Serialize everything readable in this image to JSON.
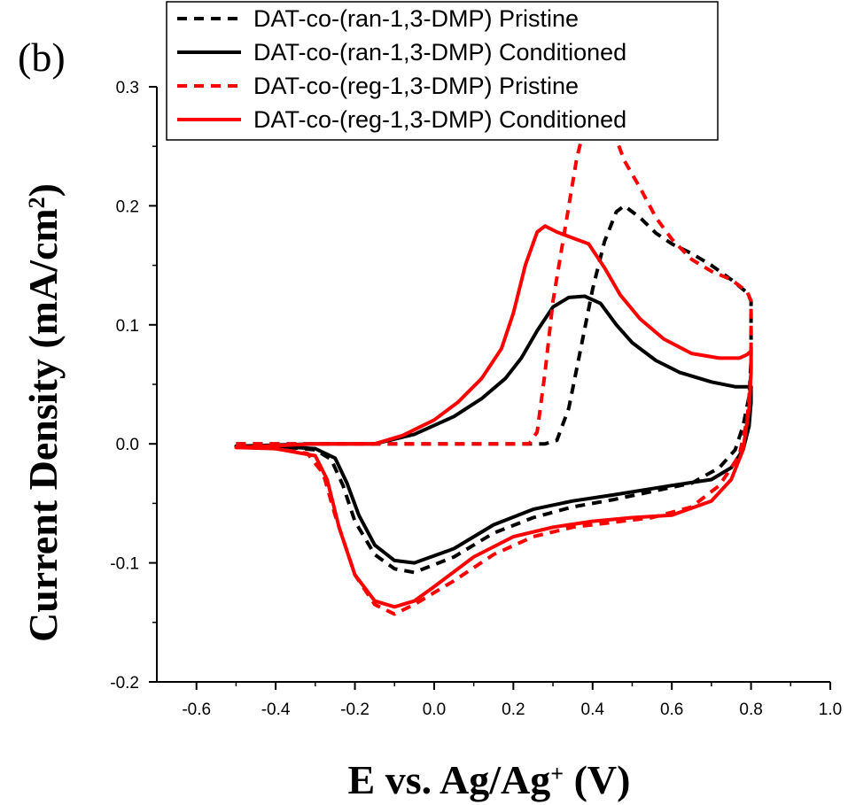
{
  "chart_data": {
    "type": "line",
    "panel_label": "(b)",
    "xlabel": {
      "main": "E vs. Ag/Ag",
      "sup": "+",
      "tail": " (V)"
    },
    "ylabel": {
      "main": "Current Density (mA/cm",
      "sup": "2",
      "tail": ")"
    },
    "xlim": [
      -0.7,
      1.0
    ],
    "ylim": [
      -0.2,
      0.3
    ],
    "xticks": [
      -0.6,
      -0.4,
      -0.2,
      0.0,
      0.2,
      0.4,
      0.6,
      0.8,
      1.0
    ],
    "xtick_labels": [
      "-0.6",
      "-0.4",
      "-0.2",
      "0.0",
      "0.2",
      "0.4",
      "0.6",
      "0.8",
      "1.0"
    ],
    "yticks": [
      -0.2,
      -0.1,
      0.0,
      0.1,
      0.2,
      0.3
    ],
    "ytick_labels": [
      "-0.2",
      "-0.1",
      "0.0",
      "0.1",
      "0.2",
      "0.3"
    ],
    "grid": false,
    "legend_position": "top",
    "series": [
      {
        "name": "DAT-co-(ran-1,3-DMP) Pristine",
        "color": "#000000",
        "dash": "dashed",
        "points": [
          [
            -0.5,
            0.0
          ],
          [
            -0.3,
            0.0
          ],
          [
            0.0,
            0.0
          ],
          [
            0.2,
            0.0
          ],
          [
            0.28,
            0.0
          ],
          [
            0.31,
            0.003
          ],
          [
            0.34,
            0.03
          ],
          [
            0.37,
            0.08
          ],
          [
            0.4,
            0.13
          ],
          [
            0.43,
            0.17
          ],
          [
            0.46,
            0.195
          ],
          [
            0.48,
            0.2
          ],
          [
            0.52,
            0.19
          ],
          [
            0.56,
            0.177
          ],
          [
            0.6,
            0.168
          ],
          [
            0.65,
            0.16
          ],
          [
            0.7,
            0.15
          ],
          [
            0.75,
            0.138
          ],
          [
            0.79,
            0.127
          ],
          [
            0.8,
            0.12
          ],
          [
            0.8,
            0.07
          ],
          [
            0.795,
            0.04
          ],
          [
            0.78,
            0.015
          ],
          [
            0.76,
            -0.005
          ],
          [
            0.72,
            -0.02
          ],
          [
            0.65,
            -0.033
          ],
          [
            0.55,
            -0.04
          ],
          [
            0.45,
            -0.047
          ],
          [
            0.35,
            -0.053
          ],
          [
            0.25,
            -0.062
          ],
          [
            0.15,
            -0.075
          ],
          [
            0.05,
            -0.095
          ],
          [
            -0.05,
            -0.108
          ],
          [
            -0.1,
            -0.105
          ],
          [
            -0.15,
            -0.093
          ],
          [
            -0.2,
            -0.065
          ],
          [
            -0.23,
            -0.035
          ],
          [
            -0.26,
            -0.013
          ],
          [
            -0.3,
            -0.005
          ],
          [
            -0.4,
            -0.002
          ],
          [
            -0.5,
            -0.002
          ]
        ]
      },
      {
        "name": "DAT-co-(ran-1,3-DMP) Conditioned",
        "color": "#000000",
        "dash": "solid",
        "points": [
          [
            -0.5,
            -0.002
          ],
          [
            -0.3,
            0.0
          ],
          [
            -0.15,
            0.0
          ],
          [
            -0.05,
            0.008
          ],
          [
            0.05,
            0.023
          ],
          [
            0.12,
            0.038
          ],
          [
            0.18,
            0.055
          ],
          [
            0.22,
            0.072
          ],
          [
            0.26,
            0.095
          ],
          [
            0.3,
            0.115
          ],
          [
            0.34,
            0.123
          ],
          [
            0.38,
            0.124
          ],
          [
            0.42,
            0.118
          ],
          [
            0.46,
            0.1
          ],
          [
            0.5,
            0.085
          ],
          [
            0.56,
            0.07
          ],
          [
            0.62,
            0.06
          ],
          [
            0.7,
            0.052
          ],
          [
            0.76,
            0.048
          ],
          [
            0.8,
            0.048
          ],
          [
            0.8,
            0.035
          ],
          [
            0.795,
            0.015
          ],
          [
            0.78,
            -0.005
          ],
          [
            0.75,
            -0.02
          ],
          [
            0.7,
            -0.03
          ],
          [
            0.6,
            -0.035
          ],
          [
            0.45,
            -0.043
          ],
          [
            0.35,
            -0.048
          ],
          [
            0.25,
            -0.055
          ],
          [
            0.15,
            -0.068
          ],
          [
            0.05,
            -0.088
          ],
          [
            -0.05,
            -0.1
          ],
          [
            -0.1,
            -0.098
          ],
          [
            -0.15,
            -0.085
          ],
          [
            -0.19,
            -0.06
          ],
          [
            -0.22,
            -0.033
          ],
          [
            -0.25,
            -0.012
          ],
          [
            -0.3,
            -0.004
          ],
          [
            -0.4,
            -0.002
          ],
          [
            -0.5,
            -0.002
          ]
        ]
      },
      {
        "name": "DAT-co-(reg-1,3-DMP) Pristine",
        "color": "#ff0000",
        "dash": "dashed",
        "points": [
          [
            -0.5,
            0.0
          ],
          [
            -0.3,
            0.0
          ],
          [
            0.0,
            0.0
          ],
          [
            0.2,
            0.0
          ],
          [
            0.24,
            0.0
          ],
          [
            0.26,
            0.01
          ],
          [
            0.28,
            0.06
          ],
          [
            0.3,
            0.12
          ],
          [
            0.33,
            0.18
          ],
          [
            0.36,
            0.24
          ],
          [
            0.39,
            0.28
          ],
          [
            0.41,
            0.292
          ],
          [
            0.43,
            0.29
          ],
          [
            0.45,
            0.265
          ],
          [
            0.48,
            0.238
          ],
          [
            0.52,
            0.215
          ],
          [
            0.56,
            0.19
          ],
          [
            0.6,
            0.172
          ],
          [
            0.65,
            0.155
          ],
          [
            0.7,
            0.145
          ],
          [
            0.75,
            0.138
          ],
          [
            0.79,
            0.128
          ],
          [
            0.8,
            0.12
          ],
          [
            0.8,
            0.06
          ],
          [
            0.79,
            0.02
          ],
          [
            0.77,
            -0.01
          ],
          [
            0.72,
            -0.035
          ],
          [
            0.65,
            -0.053
          ],
          [
            0.55,
            -0.062
          ],
          [
            0.45,
            -0.066
          ],
          [
            0.35,
            -0.07
          ],
          [
            0.25,
            -0.078
          ],
          [
            0.15,
            -0.093
          ],
          [
            0.05,
            -0.115
          ],
          [
            -0.05,
            -0.135
          ],
          [
            -0.1,
            -0.143
          ],
          [
            -0.15,
            -0.135
          ],
          [
            -0.2,
            -0.11
          ],
          [
            -0.25,
            -0.06
          ],
          [
            -0.28,
            -0.025
          ],
          [
            -0.32,
            -0.008
          ],
          [
            -0.4,
            -0.004
          ],
          [
            -0.5,
            -0.003
          ]
        ]
      },
      {
        "name": "DAT-co-(reg-1,3-DMP) Conditioned",
        "color": "#ff0000",
        "dash": "solid",
        "points": [
          [
            -0.5,
            -0.003
          ],
          [
            -0.3,
            0.0
          ],
          [
            -0.15,
            0.0
          ],
          [
            -0.08,
            0.007
          ],
          [
            0.0,
            0.02
          ],
          [
            0.06,
            0.035
          ],
          [
            0.12,
            0.055
          ],
          [
            0.17,
            0.08
          ],
          [
            0.2,
            0.11
          ],
          [
            0.23,
            0.15
          ],
          [
            0.26,
            0.178
          ],
          [
            0.28,
            0.183
          ],
          [
            0.31,
            0.178
          ],
          [
            0.35,
            0.173
          ],
          [
            0.39,
            0.168
          ],
          [
            0.43,
            0.148
          ],
          [
            0.47,
            0.125
          ],
          [
            0.52,
            0.105
          ],
          [
            0.58,
            0.088
          ],
          [
            0.65,
            0.076
          ],
          [
            0.72,
            0.072
          ],
          [
            0.77,
            0.072
          ],
          [
            0.79,
            0.075
          ],
          [
            0.8,
            0.078
          ],
          [
            0.8,
            0.06
          ],
          [
            0.795,
            0.03
          ],
          [
            0.78,
            -0.005
          ],
          [
            0.75,
            -0.03
          ],
          [
            0.7,
            -0.048
          ],
          [
            0.6,
            -0.06
          ],
          [
            0.5,
            -0.062
          ],
          [
            0.4,
            -0.065
          ],
          [
            0.3,
            -0.07
          ],
          [
            0.2,
            -0.078
          ],
          [
            0.1,
            -0.095
          ],
          [
            0.0,
            -0.12
          ],
          [
            -0.05,
            -0.132
          ],
          [
            -0.1,
            -0.137
          ],
          [
            -0.15,
            -0.132
          ],
          [
            -0.2,
            -0.11
          ],
          [
            -0.24,
            -0.07
          ],
          [
            -0.27,
            -0.03
          ],
          [
            -0.3,
            -0.01
          ],
          [
            -0.4,
            -0.004
          ],
          [
            -0.5,
            -0.003
          ]
        ]
      }
    ]
  }
}
